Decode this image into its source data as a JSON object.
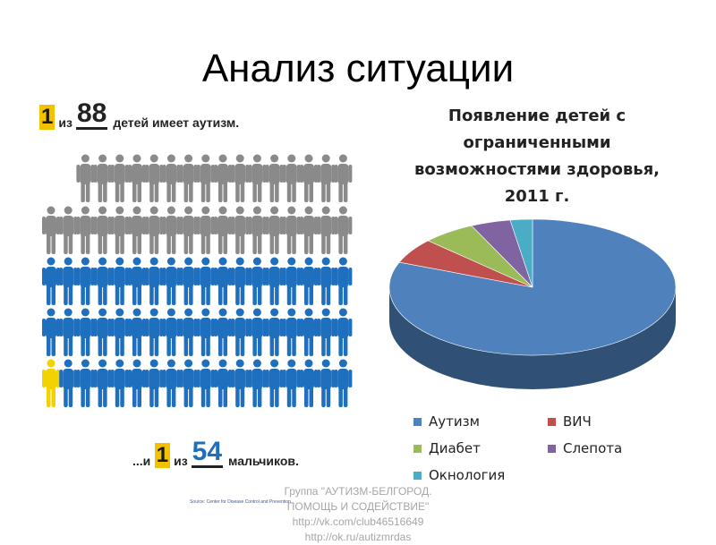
{
  "title": "Анализ ситуации",
  "infographic": {
    "top_digit": "1",
    "top_word": "из",
    "top_number": "88",
    "top_tail": "детей имеет аутизм.",
    "bottom_prefix": "...и",
    "bottom_digit": "1",
    "bottom_word": "из",
    "bottom_number": "54",
    "bottom_tail": "мальчиков.",
    "source": "Source: Center for Disease Control and Prevention",
    "colors": {
      "gray": "#8a8a8a",
      "blue": "#1f6fbf",
      "yellow": "#f2d200"
    }
  },
  "chart_data": {
    "type": "pie",
    "title": "Появление детей с ограниченными возможностями здоровья, 2011 г.",
    "categories": [
      "Аутизм",
      "ВИЧ",
      "Диабет",
      "Слепота",
      "Окнология"
    ],
    "values": [
      81,
      6,
      6,
      4.5,
      2.5
    ],
    "colors": [
      "#4f81bd",
      "#c0504d",
      "#9bbb59",
      "#8064a2",
      "#4bacc6"
    ],
    "legend_placement": "bottom",
    "three_d": true
  },
  "footer": {
    "line1": "Группа \"АУТИЗМ-БЕЛГОРОД.",
    "line2": "ПОМОЩЬ И СОДЕЙСТВИЕ\"",
    "line3": "http://vk.com/club46516649",
    "line4": "http://ok.ru/autizmrdas"
  }
}
